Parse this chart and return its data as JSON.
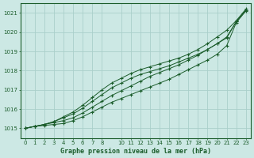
{
  "title": "Graphe pression niveau de la mer (hPa)",
  "bg_color": "#cce8e4",
  "grid_color": "#aacfca",
  "line_color": "#1a5c2a",
  "marker_color": "#1a5c2a",
  "xlim": [
    -0.5,
    23.5
  ],
  "ylim": [
    1014.5,
    1021.5
  ],
  "yticks": [
    1015,
    1016,
    1017,
    1018,
    1019,
    1020,
    1021
  ],
  "x_ticks": [
    0,
    1,
    2,
    3,
    4,
    5,
    6,
    7,
    8,
    10,
    11,
    12,
    13,
    14,
    15,
    16,
    17,
    18,
    19,
    20,
    21,
    22,
    23
  ],
  "series": [
    [
      1015.0,
      1015.1,
      1015.15,
      1015.2,
      1015.25,
      1015.4,
      1015.6,
      1015.85,
      1016.1,
      1016.35,
      1016.55,
      1016.75,
      1016.95,
      1017.15,
      1017.35,
      1017.55,
      1017.8,
      1018.05,
      1018.3,
      1018.55,
      1018.85,
      1019.3,
      1020.5,
      1021.1
    ],
    [
      1015.0,
      1015.1,
      1015.2,
      1015.3,
      1015.4,
      1015.55,
      1015.8,
      1016.1,
      1016.4,
      1016.7,
      1016.95,
      1017.2,
      1017.45,
      1017.7,
      1017.9,
      1018.1,
      1018.3,
      1018.55,
      1018.8,
      1019.1,
      1019.4,
      1019.7,
      1020.55,
      1021.15
    ],
    [
      1015.0,
      1015.1,
      1015.2,
      1015.35,
      1015.55,
      1015.75,
      1016.05,
      1016.4,
      1016.75,
      1017.1,
      1017.35,
      1017.6,
      1017.8,
      1017.95,
      1018.1,
      1018.25,
      1018.45,
      1018.65,
      1018.85,
      1019.1,
      1019.4,
      1019.75,
      1020.55,
      1021.15
    ],
    [
      1015.0,
      1015.1,
      1015.2,
      1015.35,
      1015.6,
      1015.85,
      1016.2,
      1016.6,
      1017.0,
      1017.35,
      1017.6,
      1017.85,
      1018.05,
      1018.2,
      1018.35,
      1018.5,
      1018.65,
      1018.85,
      1019.1,
      1019.4,
      1019.75,
      1020.1,
      1020.6,
      1021.2
    ]
  ]
}
